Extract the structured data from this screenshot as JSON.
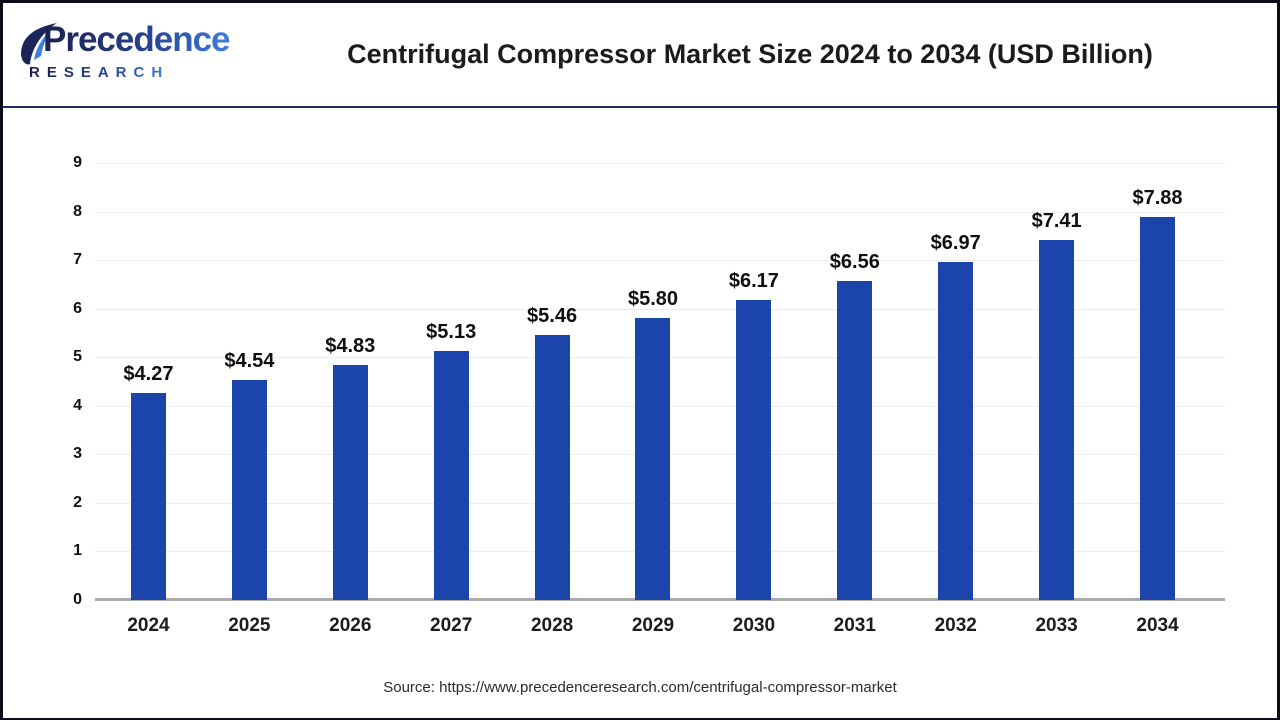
{
  "page": {
    "frame_color": "#0d0d1a",
    "header_rule_color": "#242a63",
    "background": "#ffffff"
  },
  "header": {
    "logo": {
      "line1": "Precedence",
      "line2": "RESEARCH"
    },
    "title": "Centrifugal Compressor Market Size 2024 to 2034 (USD Billion)"
  },
  "chart_data": {
    "type": "bar",
    "title": "Centrifugal Compressor Market Size 2024 to 2034 (USD Billion)",
    "categories": [
      "2024",
      "2025",
      "2026",
      "2027",
      "2028",
      "2029",
      "2030",
      "2031",
      "2032",
      "2033",
      "2034"
    ],
    "values": [
      4.27,
      4.54,
      4.83,
      5.13,
      5.46,
      5.8,
      6.17,
      6.56,
      6.97,
      7.41,
      7.88
    ],
    "value_labels": [
      "$4.27",
      "$4.54",
      "$4.83",
      "$5.13",
      "$5.46",
      "$5.80",
      "$6.17",
      "$6.56",
      "$6.97",
      "$7.41",
      "$7.88"
    ],
    "xlabel": "",
    "ylabel": "",
    "ylim": [
      0,
      9
    ],
    "yticks": [
      0,
      1,
      2,
      3,
      4,
      5,
      6,
      7,
      8,
      9
    ],
    "grid": "horizontal",
    "legend": "none",
    "bar_color": "#1c45ab",
    "axis_line_color": "#ababab",
    "gridline_color": "#ededed"
  },
  "footer": {
    "source": "Source: https://www.precedenceresearch.com/centrifugal-compressor-market"
  }
}
